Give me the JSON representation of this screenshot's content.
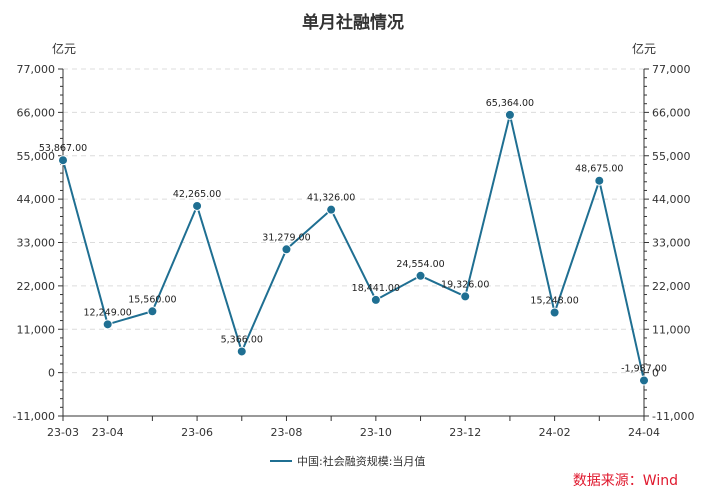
{
  "chart_data": {
    "type": "line",
    "title": "单月社融情况",
    "ylabel_left": "亿元",
    "ylabel_right": "亿元",
    "ylim": [
      -11000,
      77000
    ],
    "yticks": [
      -11000,
      0,
      11000,
      22000,
      33000,
      44000,
      55000,
      66000,
      77000
    ],
    "ytick_labels": [
      "-11,000",
      "0",
      "11,000",
      "22,000",
      "33,000",
      "44,000",
      "55,000",
      "66,000",
      "77,000"
    ],
    "categories": [
      "23-03",
      "23-04",
      "23-05",
      "23-06",
      "23-07",
      "23-08",
      "23-09",
      "23-10",
      "23-11",
      "23-12",
      "24-01",
      "24-02",
      "24-03",
      "24-04"
    ],
    "xtick_labels": [
      "23-03",
      "23-04",
      "23-06",
      "23-08",
      "23-10",
      "23-12",
      "24-02",
      "24-04"
    ],
    "series": [
      {
        "name": "中国:社会融资规模:当月值",
        "values": [
          53867,
          12249,
          15560,
          42265,
          5366,
          31279,
          41326,
          18441,
          24554,
          19326,
          65364,
          15248,
          48675,
          -1987
        ],
        "value_labels": [
          "53,867.00",
          "12,249.00",
          "15,560.00",
          "42,265.00",
          "5,366.00",
          "31,279.00",
          "41,326.00",
          "18,441.00",
          "24,554.00",
          "19,326.00",
          "65,364.00",
          "15,248.00",
          "48,675.00",
          "-1,987.00"
        ],
        "color": "#1f6f92"
      }
    ],
    "grid": true,
    "legend_position": "bottom-center",
    "source": "数据来源：Wind"
  }
}
